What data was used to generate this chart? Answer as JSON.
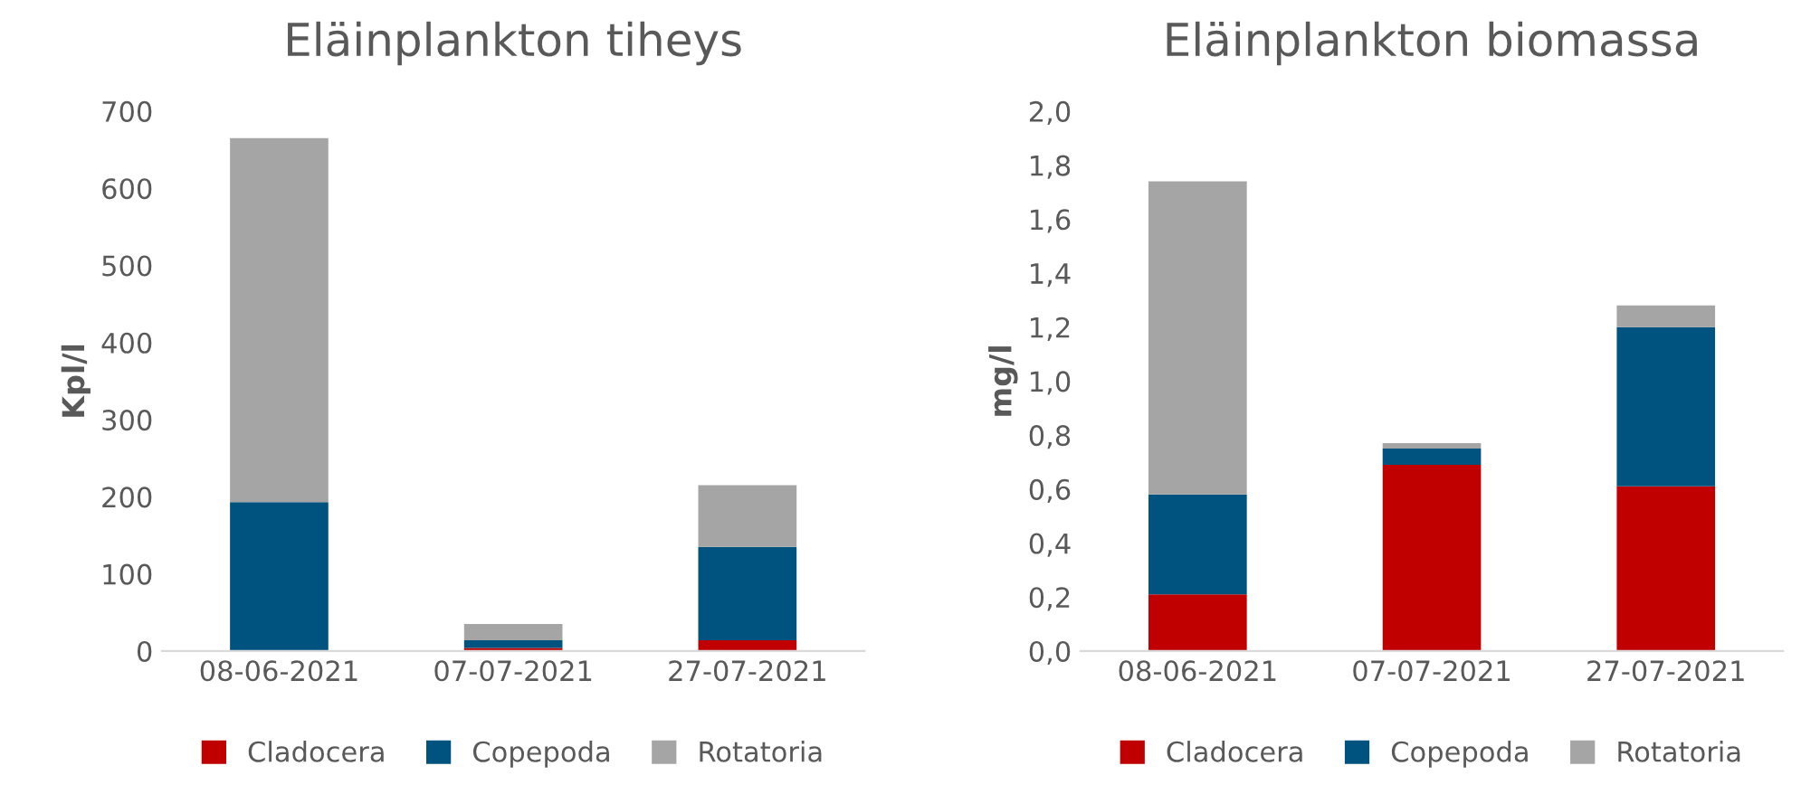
{
  "chart_data": [
    {
      "type": "bar",
      "title": "Eläinplankton tiheys",
      "ylabel": "Kpl/l",
      "stacked": true,
      "legend": "bottom",
      "grid": false,
      "categories": [
        "08-06-2021",
        "07-07-2021",
        "27-07-2021"
      ],
      "series": [
        {
          "name": "Cladocera",
          "color": "#c00000",
          "values": [
            0,
            4,
            14
          ]
        },
        {
          "name": "Copepoda",
          "color": "#00537f",
          "values": [
            193,
            10,
            121
          ]
        },
        {
          "name": "Rotatoria",
          "color": "#a5a5a5",
          "values": [
            472,
            21,
            80
          ]
        }
      ],
      "ylim": [
        0,
        700
      ],
      "yticks": [
        0,
        100,
        200,
        300,
        400,
        500,
        600,
        700
      ]
    },
    {
      "type": "bar",
      "title": "Eläinplankton biomassa",
      "ylabel": "mg/l",
      "stacked": true,
      "legend": "bottom",
      "grid": false,
      "categories": [
        "08-06-2021",
        "07-07-2021",
        "27-07-2021"
      ],
      "series": [
        {
          "name": "Cladocera",
          "color": "#c00000",
          "values": [
            0.21,
            0.69,
            0.61
          ]
        },
        {
          "name": "Copepoda",
          "color": "#00537f",
          "values": [
            0.37,
            0.06,
            0.59
          ]
        },
        {
          "name": "Rotatoria",
          "color": "#a5a5a5",
          "values": [
            1.16,
            0.02,
            0.08
          ]
        }
      ],
      "ylim": [
        0,
        2.0
      ],
      "yticks": [
        {
          "value": 0,
          "label": "0,0"
        },
        {
          "value": 0.2,
          "label": "0,2"
        },
        {
          "value": 0.4,
          "label": "0,4"
        },
        {
          "value": 0.6,
          "label": "0,6"
        },
        {
          "value": 0.8,
          "label": "0,8"
        },
        {
          "value": 1.0,
          "label": "1,0"
        },
        {
          "value": 1.2,
          "label": "1,2"
        },
        {
          "value": 1.4,
          "label": "1,4"
        },
        {
          "value": 1.6,
          "label": "1,6"
        },
        {
          "value": 1.8,
          "label": "1,8"
        },
        {
          "value": 2.0,
          "label": "2,0"
        }
      ]
    }
  ]
}
